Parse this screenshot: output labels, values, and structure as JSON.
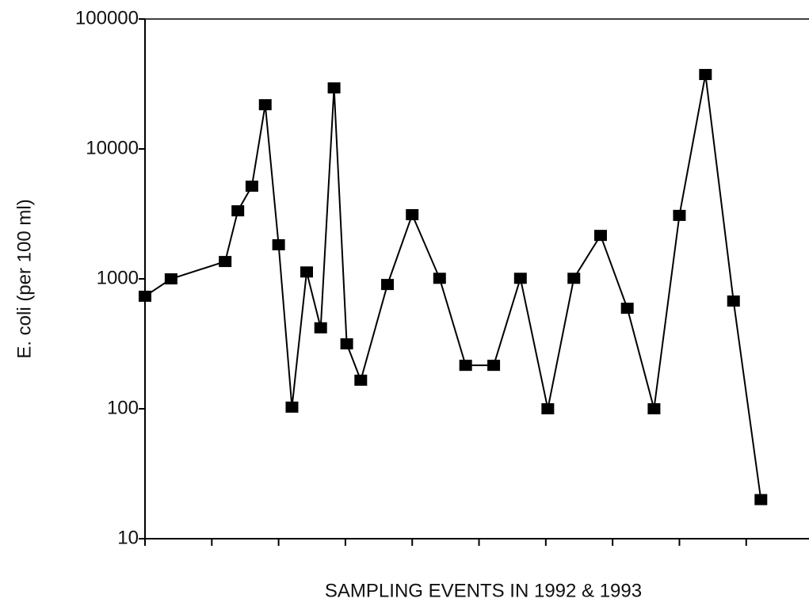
{
  "chart_data": {
    "type": "line",
    "x_label": "SAMPLING EVENTS IN 1992 & 1993",
    "y_label": "E. coli (per 100 ml)",
    "x": [
      0,
      0.39,
      1.2,
      1.39,
      1.6,
      1.8,
      2.0,
      2.2,
      2.42,
      2.63,
      2.83,
      3.02,
      3.23,
      3.63,
      4.0,
      4.41,
      4.8,
      5.22,
      5.62,
      6.03,
      6.42,
      6.82,
      7.22,
      7.62,
      8.0,
      8.39,
      8.81,
      9.22
    ],
    "series": [
      {
        "color": "#000000",
        "values": [
          735,
          1000,
          1360,
          3340,
          5170,
          21900,
          1830,
          103,
          1130,
          420,
          29500,
          316,
          166,
          905,
          3120,
          1010,
          216,
          216,
          1010,
          100,
          1010,
          2160,
          594,
          100,
          3080,
          37400,
          675,
          20
        ]
      }
    ],
    "xlim": [
      0,
      9.94
    ],
    "xticks": [
      0,
      1,
      2,
      3,
      4,
      5,
      6,
      7,
      8,
      9
    ],
    "ylim": [
      10,
      100000
    ],
    "yticks": [
      10,
      100,
      1000,
      10000,
      100000
    ],
    "y_scale": "log"
  }
}
